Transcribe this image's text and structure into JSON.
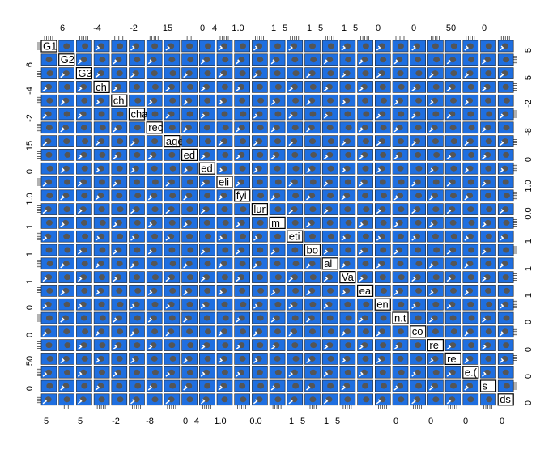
{
  "chart_data": {
    "type": "scatter_matrix",
    "variables": [
      "G1",
      "G2",
      "G3",
      "ch",
      "ch",
      "cha",
      "rec",
      "age",
      "ed",
      "ed",
      "eli",
      "fyi",
      "lur",
      "m",
      "eti",
      "bo",
      "al",
      "Va",
      "eal",
      "en",
      "n.t",
      "co",
      "re",
      "re",
      "e.(",
      "s",
      "ds"
    ],
    "top_ticks": [
      6,
      -4,
      -2,
      15,
      0,
      4,
      {
        "value": 1,
        "label": "1.0"
      },
      1,
      5,
      1,
      5,
      1,
      5,
      0,
      0,
      50,
      0
    ],
    "bottom_ticks": [
      5,
      5,
      -2,
      -8,
      0,
      4,
      {
        "value": 1,
        "label": "1.0"
      },
      {
        "value": 0,
        "label": "0.0"
      },
      1,
      5,
      1,
      5,
      0,
      0,
      0,
      0
    ],
    "left_ticks": [
      6,
      -4,
      -2,
      15,
      0,
      {
        "value": 1,
        "label": "1.0"
      },
      1,
      1,
      1,
      0,
      0,
      50,
      0
    ],
    "right_ticks": [
      5,
      5,
      -2,
      -8,
      0,
      {
        "value": 1,
        "label": "1.0"
      },
      {
        "value": 0,
        "label": "0.0"
      },
      1,
      1,
      1,
      0,
      0,
      0,
      0
    ],
    "cell_color": "#1f6fe0",
    "point_color": "#555555"
  }
}
